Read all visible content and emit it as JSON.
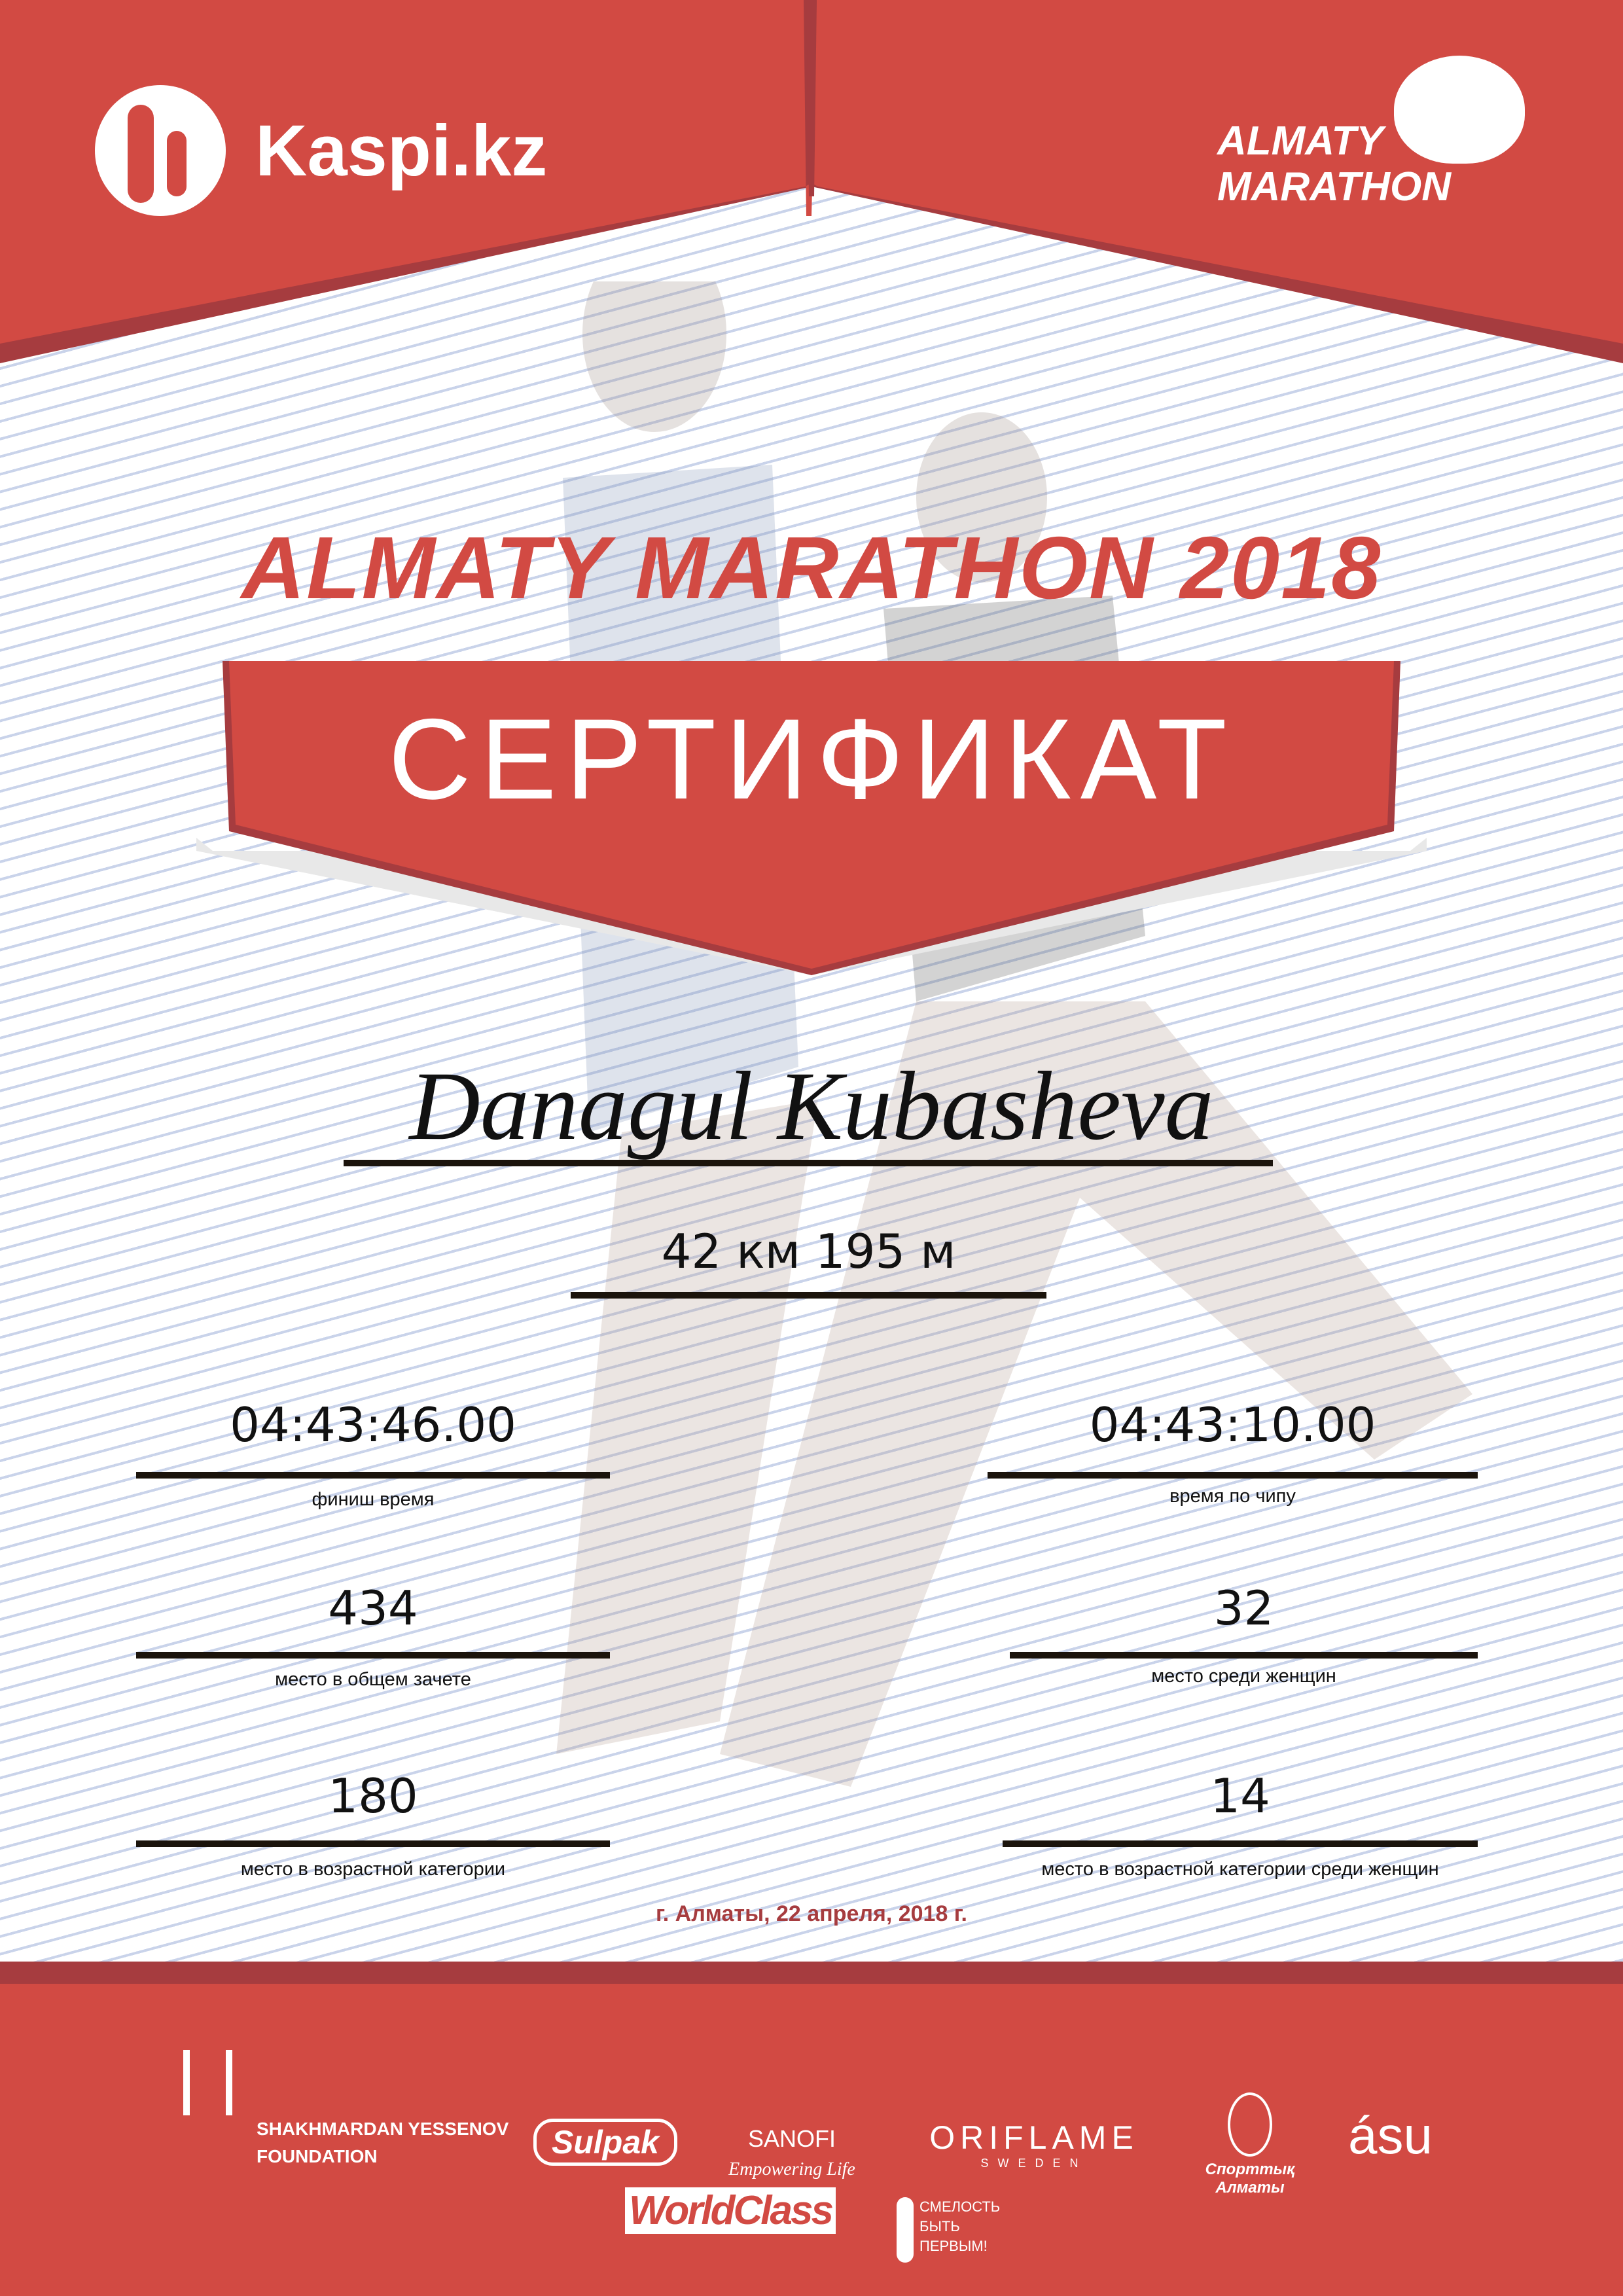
{
  "header": {
    "left_logo": "Kaspi.kz",
    "right_logo": [
      "ALMATY",
      "MARATHON"
    ]
  },
  "title": "ALMATY MARATHON 2018",
  "banner": "СЕРТИФИКАТ",
  "participant_name": "Danagul Kubasheva",
  "distance": "42 км 195 м",
  "results": {
    "finish_time": {
      "value": "04:43:46.00",
      "label": "финиш время"
    },
    "chip_time": {
      "value": "04:43:10.00",
      "label": "время по чипу"
    },
    "overall_place": {
      "value": "434",
      "label": "место в общем зачете"
    },
    "women_place": {
      "value": "32",
      "label": "место среди женщин"
    },
    "age_place": {
      "value": "180",
      "label": "место в возрастной категории"
    },
    "women_age_place": {
      "value": "14",
      "label": "место в возрастной категории среди женщин"
    }
  },
  "date": "г. Алматы, 22 апреля, 2018 г.",
  "sponsors": {
    "yessenov": [
      "SHAKHMARDAN YESSENOV",
      "FOUNDATION"
    ],
    "sulpak": "Sulpak",
    "sanofi": [
      "SANOFI",
      "Empowering Life"
    ],
    "oriflame": [
      "ORIFLAME",
      "SWEDEN"
    ],
    "sport_almaty": [
      "Спорттық",
      "Алматы"
    ],
    "asu": "ásu",
    "worldclass": "WorldClass",
    "fund": [
      "СМЕЛОСТЬ",
      "БЫТЬ",
      "ПЕРВЫМ!"
    ]
  },
  "colors": {
    "accent": "#d24a43",
    "accent_dark": "#a63c3f",
    "lines": "#c9d3ea"
  }
}
